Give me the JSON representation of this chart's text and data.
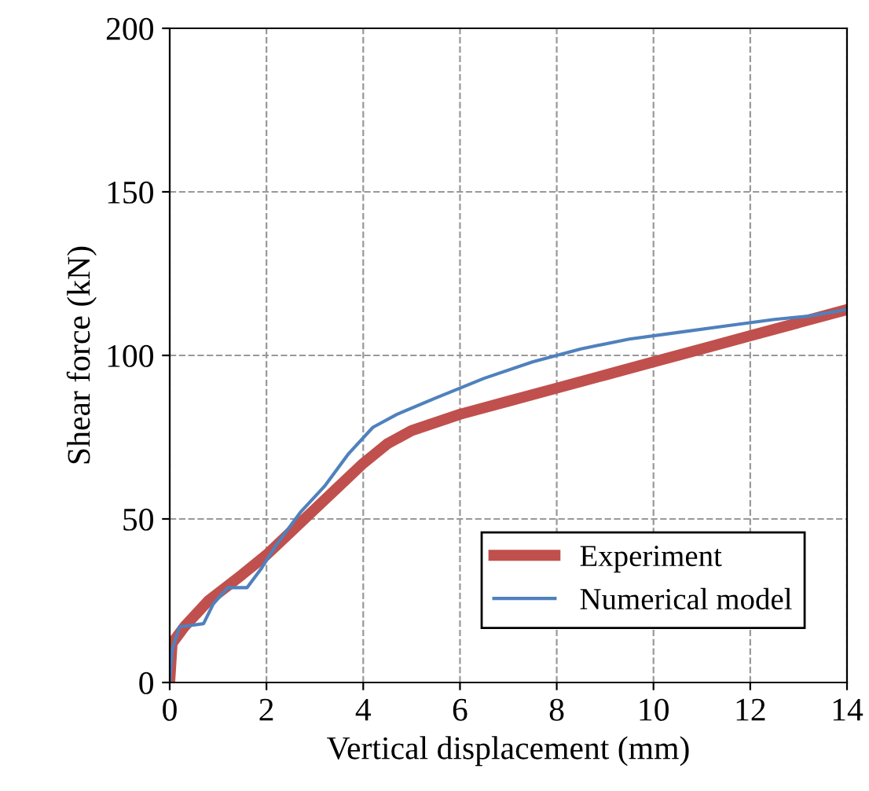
{
  "chart_data": {
    "type": "line",
    "xlabel": "Vertical displacement (mm)",
    "ylabel": "Shear force (kN)",
    "xlim": [
      0,
      14
    ],
    "xticks": [
      0,
      2,
      4,
      6,
      8,
      10,
      12,
      14
    ],
    "ylim": [
      0,
      200
    ],
    "yticks": [
      0,
      50,
      100,
      150,
      200
    ],
    "grid": true,
    "legend": "bottom right",
    "series": [
      {
        "name": "Experiment",
        "color": "#c0504d",
        "x": [
          0,
          0.05,
          0.3,
          0.8,
          1.5,
          2,
          2.5,
          3,
          3.5,
          4,
          4.5,
          5,
          6,
          7,
          8,
          9,
          10,
          11,
          12,
          13,
          14
        ],
        "values": [
          0,
          12,
          17,
          25,
          33,
          39,
          46,
          53,
          60,
          67,
          73,
          77,
          82,
          86,
          90,
          94,
          98,
          102,
          106,
          110,
          114
        ]
      },
      {
        "name": "Numerical model",
        "color": "#4f81bd",
        "x": [
          0,
          0.05,
          0.2,
          0.7,
          0.9,
          1.2,
          1.6,
          1.9,
          2.2,
          2.7,
          3.2,
          3.7,
          4.2,
          4.7,
          5.5,
          6.5,
          7.5,
          8.5,
          9.5,
          10.5,
          11.5,
          12.5,
          13.2,
          14
        ],
        "values": [
          0,
          10,
          17,
          18,
          24,
          29,
          29,
          35,
          42,
          52,
          60,
          70,
          78,
          82,
          87,
          93,
          98,
          102,
          105,
          107,
          109,
          111,
          112,
          114
        ]
      }
    ]
  }
}
